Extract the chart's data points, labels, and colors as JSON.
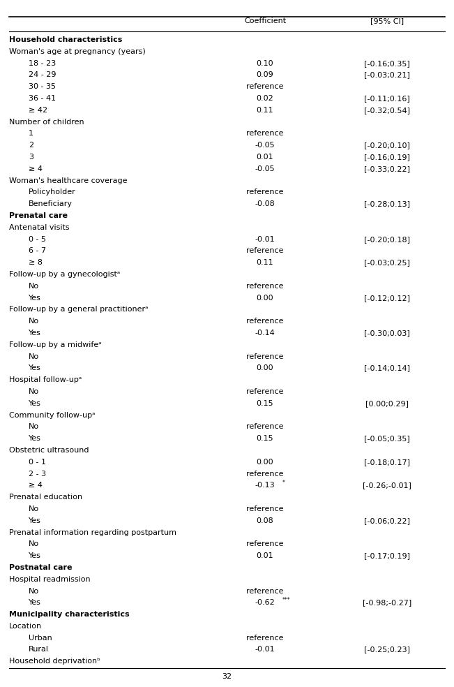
{
  "rows": [
    {
      "text": "Household characteristics",
      "coef": "",
      "ci": "",
      "indent": 0,
      "bold": true
    },
    {
      "text": "Woman's age at pregnancy (years)",
      "coef": "",
      "ci": "",
      "indent": 0,
      "bold": false
    },
    {
      "text": "18 - 23",
      "coef": "0.10",
      "ci": "[-0.16;0.35]",
      "indent": 1,
      "bold": false
    },
    {
      "text": "24 - 29",
      "coef": "0.09",
      "ci": "[-0.03;0.21]",
      "indent": 1,
      "bold": false
    },
    {
      "text": "30 - 35",
      "coef": "reference",
      "ci": "",
      "indent": 1,
      "bold": false
    },
    {
      "text": "36 - 41",
      "coef": "0.02",
      "ci": "[-0.11;0.16]",
      "indent": 1,
      "bold": false
    },
    {
      "text": "≥ 42",
      "coef": "0.11",
      "ci": "[-0.32;0.54]",
      "indent": 1,
      "bold": false
    },
    {
      "text": "Number of children",
      "coef": "",
      "ci": "",
      "indent": 0,
      "bold": false
    },
    {
      "text": "1",
      "coef": "reference",
      "ci": "",
      "indent": 1,
      "bold": false
    },
    {
      "text": "2",
      "coef": "-0.05",
      "ci": "[-0.20;0.10]",
      "indent": 1,
      "bold": false
    },
    {
      "text": "3",
      "coef": "0.01",
      "ci": "[-0.16;0.19]",
      "indent": 1,
      "bold": false
    },
    {
      "text": "≥ 4",
      "coef": "-0.05",
      "ci": "[-0.33;0.22]",
      "indent": 1,
      "bold": false
    },
    {
      "text": "Woman's healthcare coverage",
      "coef": "",
      "ci": "",
      "indent": 0,
      "bold": false
    },
    {
      "text": "Policyholder",
      "coef": "reference",
      "ci": "",
      "indent": 1,
      "bold": false
    },
    {
      "text": "Beneficiary",
      "coef": "-0.08",
      "ci": "[-0.28;0.13]",
      "indent": 1,
      "bold": false
    },
    {
      "text": "Prenatal care",
      "coef": "",
      "ci": "",
      "indent": 0,
      "bold": true
    },
    {
      "text": "Antenatal visits",
      "coef": "",
      "ci": "",
      "indent": 0,
      "bold": false
    },
    {
      "text": "0 - 5",
      "coef": "-0.01",
      "ci": "[-0.20;0.18]",
      "indent": 1,
      "bold": false
    },
    {
      "text": "6 - 7",
      "coef": "reference",
      "ci": "",
      "indent": 1,
      "bold": false
    },
    {
      "text": "≥ 8",
      "coef": "0.11",
      "ci": "[-0.03;0.25]",
      "indent": 1,
      "bold": false
    },
    {
      "text": "Follow-up by a gynecologistᵃ",
      "coef": "",
      "ci": "",
      "indent": 0,
      "bold": false
    },
    {
      "text": "No",
      "coef": "reference",
      "ci": "",
      "indent": 1,
      "bold": false
    },
    {
      "text": "Yes",
      "coef": "0.00",
      "ci": "[-0.12;0.12]",
      "indent": 1,
      "bold": false
    },
    {
      "text": "Follow-up by a general practitionerᵃ",
      "coef": "",
      "ci": "",
      "indent": 0,
      "bold": false
    },
    {
      "text": "No",
      "coef": "reference",
      "ci": "",
      "indent": 1,
      "bold": false
    },
    {
      "text": "Yes",
      "coef": "-0.14",
      "ci": "[-0.30;0.03]",
      "indent": 1,
      "bold": false
    },
    {
      "text": "Follow-up by a midwifeᵃ",
      "coef": "",
      "ci": "",
      "indent": 0,
      "bold": false
    },
    {
      "text": "No",
      "coef": "reference",
      "ci": "",
      "indent": 1,
      "bold": false
    },
    {
      "text": "Yes",
      "coef": "0.00",
      "ci": "[-0.14;0.14]",
      "indent": 1,
      "bold": false
    },
    {
      "text": "Hospital follow-upᵃ",
      "coef": "",
      "ci": "",
      "indent": 0,
      "bold": false
    },
    {
      "text": "No",
      "coef": "reference",
      "ci": "",
      "indent": 1,
      "bold": false
    },
    {
      "text": "Yes",
      "coef": "0.15",
      "ci": "[0.00;0.29]",
      "indent": 1,
      "bold": false
    },
    {
      "text": "Community follow-upᵃ",
      "coef": "",
      "ci": "",
      "indent": 0,
      "bold": false
    },
    {
      "text": "No",
      "coef": "reference",
      "ci": "",
      "indent": 1,
      "bold": false
    },
    {
      "text": "Yes",
      "coef": "0.15",
      "ci": "[-0.05;0.35]",
      "indent": 1,
      "bold": false
    },
    {
      "text": "Obstetric ultrasound",
      "coef": "",
      "ci": "",
      "indent": 0,
      "bold": false
    },
    {
      "text": "0 - 1",
      "coef": "0.00",
      "ci": "[-0.18;0.17]",
      "indent": 1,
      "bold": false
    },
    {
      "text": "2 - 3",
      "coef": "reference",
      "ci": "",
      "indent": 1,
      "bold": false
    },
    {
      "text": "≥ 4",
      "coef": "-0.13",
      "ci": "[-0.26;-0.01]",
      "indent": 1,
      "bold": false,
      "coef_star": "*"
    },
    {
      "text": "Prenatal education",
      "coef": "",
      "ci": "",
      "indent": 0,
      "bold": false
    },
    {
      "text": "No",
      "coef": "reference",
      "ci": "",
      "indent": 1,
      "bold": false
    },
    {
      "text": "Yes",
      "coef": "0.08",
      "ci": "[-0.06;0.22]",
      "indent": 1,
      "bold": false
    },
    {
      "text": "Prenatal information regarding postpartum",
      "coef": "",
      "ci": "",
      "indent": 0,
      "bold": false
    },
    {
      "text": "No",
      "coef": "reference",
      "ci": "",
      "indent": 1,
      "bold": false
    },
    {
      "text": "Yes",
      "coef": "0.01",
      "ci": "[-0.17;0.19]",
      "indent": 1,
      "bold": false
    },
    {
      "text": "Postnatal care",
      "coef": "",
      "ci": "",
      "indent": 0,
      "bold": true
    },
    {
      "text": "Hospital readmission",
      "coef": "",
      "ci": "",
      "indent": 0,
      "bold": false
    },
    {
      "text": "No",
      "coef": "reference",
      "ci": "",
      "indent": 1,
      "bold": false
    },
    {
      "text": "Yes",
      "coef": "-0.62",
      "ci": "[-0.98;-0.27]",
      "indent": 1,
      "bold": false,
      "coef_star": "***"
    },
    {
      "text": "Municipality characteristics",
      "coef": "",
      "ci": "",
      "indent": 0,
      "bold": true
    },
    {
      "text": "Location",
      "coef": "",
      "ci": "",
      "indent": 0,
      "bold": false
    },
    {
      "text": "Urban",
      "coef": "reference",
      "ci": "",
      "indent": 1,
      "bold": false
    },
    {
      "text": "Rural",
      "coef": "-0.01",
      "ci": "[-0.25;0.23]",
      "indent": 1,
      "bold": false
    },
    {
      "text": "Household deprivationᵇ",
      "coef": "",
      "ci": "",
      "indent": 0,
      "bold": false
    }
  ],
  "font_size": 8.0,
  "page_number": "32"
}
